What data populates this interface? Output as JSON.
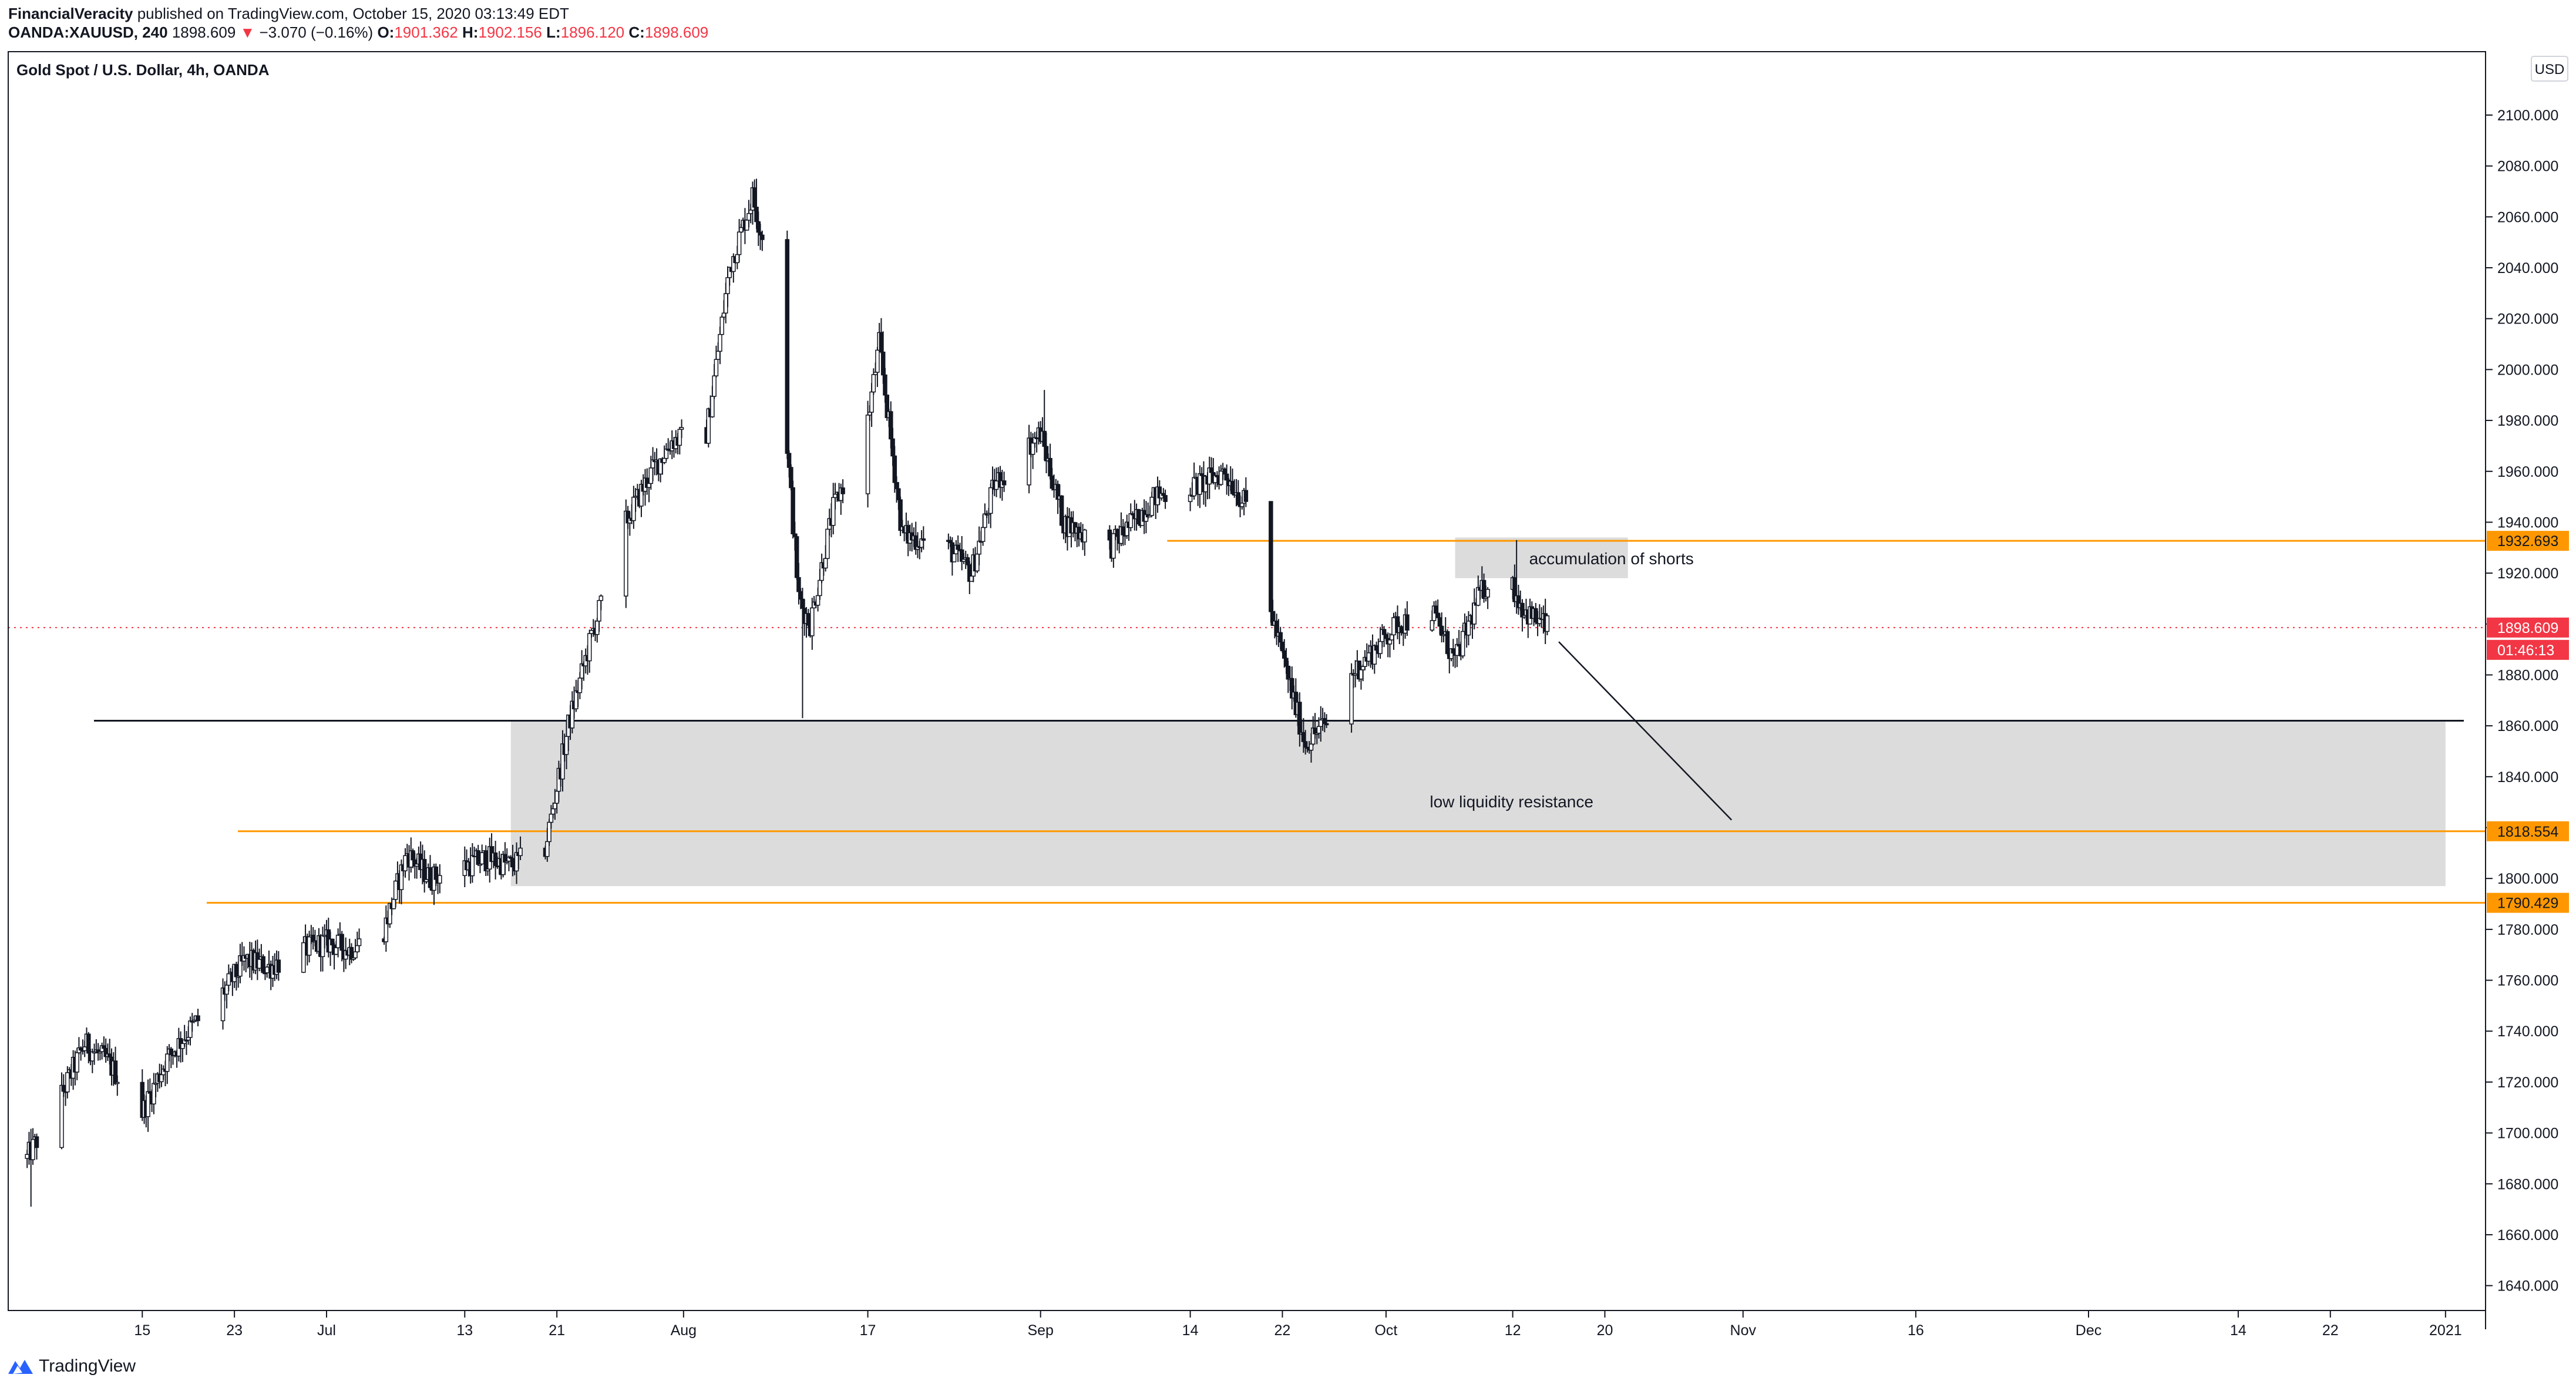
{
  "header": {
    "author": "FinancialVeracity",
    "published": "published on TradingView.com, October 15, 2020 03:13:49 EDT",
    "symbol_interval": "OANDA:XAUUSD, 240",
    "last_price": "1898.609",
    "change": "−3.070 (−0.16%)",
    "open_label": "O:",
    "open": "1901.362",
    "high_label": "H:",
    "high": "1902.156",
    "low_label": "L:",
    "low": "1896.120",
    "close_label": "C:",
    "close": "1898.609"
  },
  "chart_title": "Gold Spot / U.S. Dollar, 4h, OANDA",
  "currency_button": "USD",
  "brand": "TradingView",
  "colors": {
    "up_candle": "#ffffff",
    "down_candle": "#131722",
    "orange": "#ff9800",
    "current_price_red": "#f23645",
    "zone_gray": "#dcdcdc"
  },
  "chart_data": {
    "type": "candlestick",
    "title": "Gold Spot / U.S. Dollar, 4h, OANDA",
    "y_axis": {
      "ticks": [
        "1640.000",
        "1660.000",
        "1680.000",
        "1700.000",
        "1720.000",
        "1740.000",
        "1760.000",
        "1780.000",
        "1800.000",
        "1820.000",
        "1840.000",
        "1860.000",
        "1880.000",
        "1900.000",
        "1920.000",
        "1940.000",
        "1960.000",
        "1980.000",
        "2000.000",
        "2020.000",
        "2040.000",
        "2060.000",
        "2080.000",
        "2100.000"
      ],
      "range": [
        1626,
        2126
      ],
      "side": "right"
    },
    "x_axis": {
      "ticks": [
        "15",
        "23",
        "Jul",
        "13",
        "21",
        "Aug",
        "17",
        "Sep",
        "14",
        "22",
        "Oct",
        "12",
        "20",
        "Nov",
        "16",
        "Dec",
        "14",
        "22",
        "2021"
      ]
    },
    "price_path": [
      [
        "2020-06-05",
        1690
      ],
      [
        "2020-06-08",
        1715
      ],
      [
        "2020-06-10",
        1735
      ],
      [
        "2020-06-12",
        1728
      ],
      [
        "2020-06-15",
        1708
      ],
      [
        "2020-06-17",
        1728
      ],
      [
        "2020-06-19",
        1740
      ],
      [
        "2020-06-22",
        1755
      ],
      [
        "2020-06-24",
        1768
      ],
      [
        "2020-06-26",
        1765
      ],
      [
        "2020-06-29",
        1772
      ],
      [
        "2020-07-01",
        1775
      ],
      [
        "2020-07-03",
        1772
      ],
      [
        "2020-07-06",
        1780
      ],
      [
        "2020-07-08",
        1810
      ],
      [
        "2020-07-10",
        1800
      ],
      [
        "2020-07-13",
        1805
      ],
      [
        "2020-07-15",
        1808
      ],
      [
        "2020-07-17",
        1805
      ],
      [
        "2020-07-20",
        1812
      ],
      [
        "2020-07-22",
        1860
      ],
      [
        "2020-07-24",
        1895
      ],
      [
        "2020-07-27",
        1940
      ],
      [
        "2020-07-29",
        1958
      ],
      [
        "2020-07-31",
        1972
      ],
      [
        "2020-08-03",
        1975
      ],
      [
        "2020-08-05",
        2040
      ],
      [
        "2020-08-07",
        2068
      ],
      [
        "2020-08-09",
        2030
      ],
      [
        "2020-08-11",
        1910
      ],
      [
        "2020-08-12",
        1900
      ],
      [
        "2020-08-14",
        1945
      ],
      [
        "2020-08-17",
        1980
      ],
      [
        "2020-08-18",
        2010
      ],
      [
        "2020-08-20",
        1935
      ],
      [
        "2020-08-24",
        1930
      ],
      [
        "2020-08-26",
        1920
      ],
      [
        "2020-08-28",
        1955
      ],
      [
        "2020-09-01",
        1975
      ],
      [
        "2020-09-03",
        1940
      ],
      [
        "2020-09-07",
        1930
      ],
      [
        "2020-09-09",
        1940
      ],
      [
        "2020-09-11",
        1950
      ],
      [
        "2020-09-15",
        1955
      ],
      [
        "2020-09-17",
        1960
      ],
      [
        "2020-09-19",
        1945
      ],
      [
        "2020-09-21",
        1905
      ],
      [
        "2020-09-23",
        1870
      ],
      [
        "2020-09-24",
        1853
      ],
      [
        "2020-09-26",
        1862
      ],
      [
        "2020-09-28",
        1880
      ],
      [
        "2020-09-30",
        1890
      ],
      [
        "2020-10-02",
        1900
      ],
      [
        "2020-10-05",
        1905
      ],
      [
        "2020-10-07",
        1885
      ],
      [
        "2020-10-09",
        1910
      ],
      [
        "2020-10-11",
        1925
      ],
      [
        "2020-10-13",
        1905
      ],
      [
        "2020-10-15",
        1898.609
      ]
    ],
    "wick_extremes": {
      "low_2020-06-05": 1671,
      "high_2020-08-07": 2075,
      "low_2020-08-11": 1863,
      "high_2020-08-18": 2015,
      "high_2020-09-01": 1992,
      "low_2020-09-24": 1849,
      "high_2020-10-12": 1933
    },
    "horizontal_lines": [
      {
        "price": 1932.693,
        "label": "1932.693",
        "color": "orange"
      },
      {
        "price": 1818.554,
        "label": "1818.554",
        "color": "orange"
      },
      {
        "price": 1790.429,
        "label": "1790.429",
        "color": "orange"
      },
      {
        "price": 1862,
        "color": "black"
      }
    ],
    "zones": [
      {
        "from_date": "2020-10-07",
        "to_date": "2020-10-22",
        "price_low": 1918,
        "price_high": 1934,
        "text": "accumulation of shorts"
      },
      {
        "from_date": "2020-07-17",
        "to_date": "2021-01-01",
        "price_low": 1797,
        "price_high": 1862,
        "text": "low liquidity resistance"
      }
    ],
    "arrow_line": {
      "from": [
        "2020-10-16",
        1893
      ],
      "to": [
        "2020-10-31",
        1823
      ]
    },
    "current_price": {
      "value": "1898.609",
      "countdown": "01:46:13"
    }
  }
}
